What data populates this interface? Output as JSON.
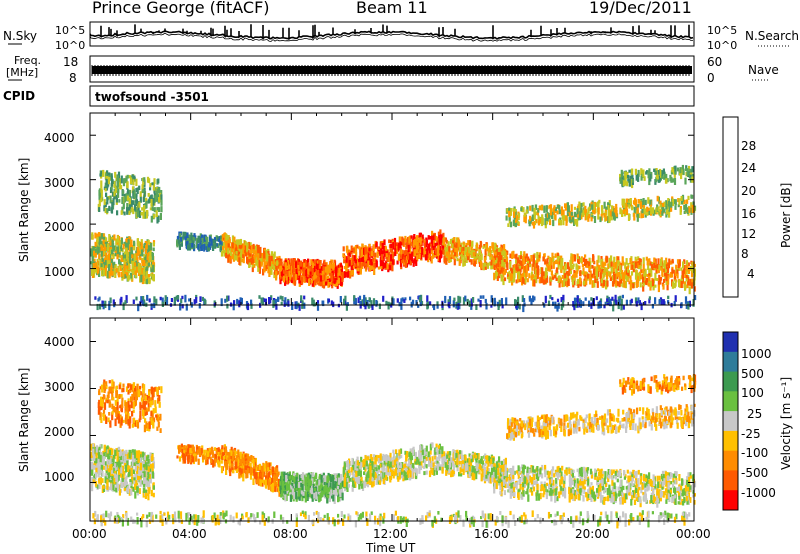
{
  "header": {
    "radar": "Prince George (fitACF)",
    "beam": "Beam 11",
    "date": "19/Dec/2011"
  },
  "chart_data": [
    {
      "type": "line",
      "panel": "noise",
      "left_label": "N.Sky",
      "right_label": "N.Search",
      "left_ticks": [
        "10^5",
        "10^0"
      ],
      "right_ticks": [
        "10^5",
        "10^0"
      ],
      "scale": "log"
    },
    {
      "type": "line",
      "panel": "frequency",
      "left_label_lines": [
        "Freq.",
        "[MHz]"
      ],
      "left_ticks": [
        "18",
        "8"
      ],
      "right_label": "Nave",
      "right_ticks": [
        "60",
        "0"
      ]
    },
    {
      "type": "table",
      "panel": "cpid",
      "label": "CPID",
      "value": "twofsound -3501"
    },
    {
      "type": "heatmap",
      "panel": "power",
      "ylabel": "Slant Range [km]",
      "y_ticks": [
        1000,
        2000,
        3000,
        4000
      ],
      "ylim": [
        180,
        4500
      ],
      "colorbar_label": "Power [dB]",
      "colorbar_ticks": [
        "4",
        "8",
        "12",
        "16",
        "20",
        "24",
        "28"
      ],
      "colors": [
        "#2020c8",
        "#1f5fb4",
        "#3a8a6a",
        "#5aa55a",
        "#c8c820",
        "#ff9a00",
        "#ff5a00",
        "#ff0000"
      ]
    },
    {
      "type": "heatmap",
      "panel": "velocity",
      "ylabel": "Slant Range [km]",
      "y_ticks": [
        1000,
        2000,
        3000,
        4000
      ],
      "ylim": [
        180,
        4500
      ],
      "colorbar_label": "Velocity [m s⁻¹]",
      "colorbar_ticks": [
        "1000",
        "500",
        "100",
        "25",
        "-25",
        "-100",
        "-500",
        "-1000"
      ],
      "colors": [
        "#2030b0",
        "#2f7c9a",
        "#3c9a50",
        "#6ac040",
        "#c8c8c8",
        "#ffc000",
        "#ff8c00",
        "#ff5a00",
        "#ff0000"
      ],
      "xlabel": "Time UT",
      "x_ticks": [
        "00:00",
        "04:00",
        "08:00",
        "12:00",
        "16:00",
        "20:00",
        "00:00"
      ]
    }
  ]
}
